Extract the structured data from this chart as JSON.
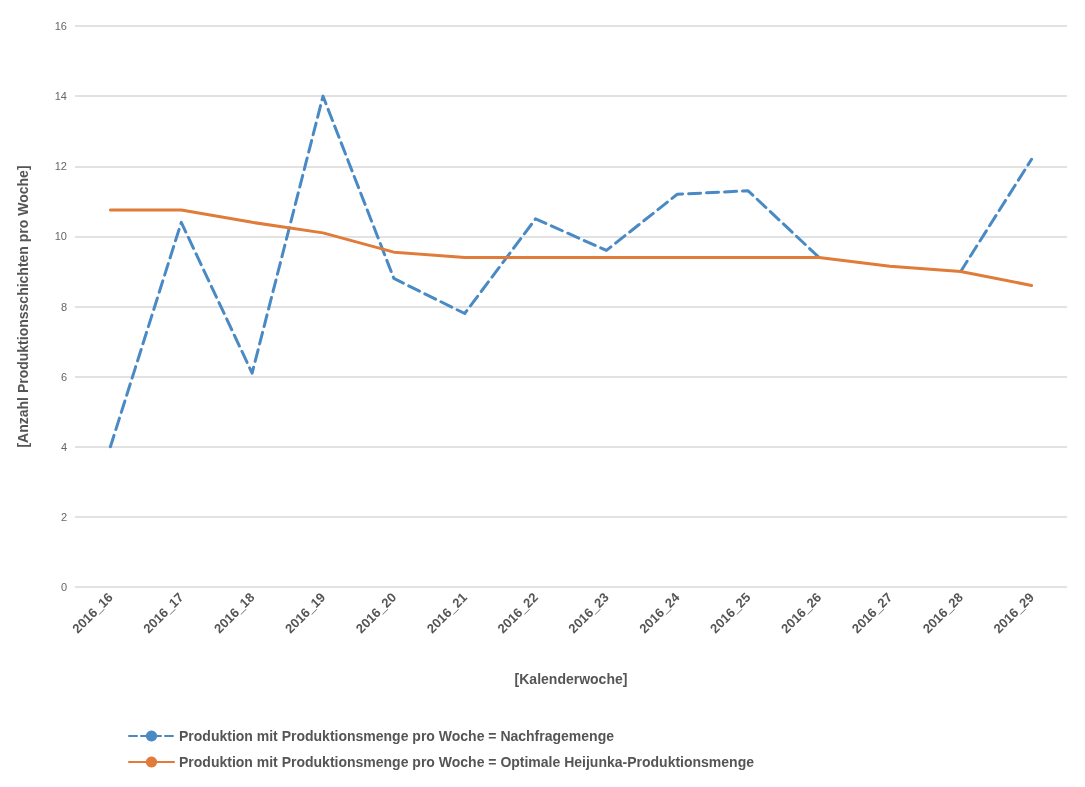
{
  "chart_data": {
    "type": "line",
    "xlabel": "[Kalenderwoche]",
    "ylabel": "[Anzahl Produktionsschichten pro Woche]",
    "categories": [
      "2016_16",
      "2016_17",
      "2016_18",
      "2016_19",
      "2016_20",
      "2016_21",
      "2016_22",
      "2016_23",
      "2016_24",
      "2016_25",
      "2016_26",
      "2016_27",
      "2016_28",
      "2016_29"
    ],
    "series": [
      {
        "name": "Produktion mit Produktionsmenge pro Woche = Nachfragemenge",
        "color": "#4a8ac4",
        "line_style": "dashed",
        "values": [
          4,
          10.4,
          6.1,
          14,
          8.8,
          7.8,
          10.5,
          9.6,
          11.2,
          11.3,
          9.4,
          null,
          9.0,
          12.2
        ]
      },
      {
        "name": "Produktion mit Produktionsmenge pro Woche = Optimale Heijunka-Produktionsmenge",
        "color": "#e07b39",
        "line_style": "solid",
        "values": [
          10.75,
          10.75,
          10.4,
          10.1,
          9.55,
          9.4,
          9.4,
          9.4,
          9.4,
          9.4,
          9.4,
          9.15,
          9.0,
          8.6
        ]
      }
    ],
    "ylim": [
      0,
      16
    ],
    "yticks": [
      0,
      2,
      4,
      6,
      8,
      10,
      12,
      14,
      16
    ],
    "grid": "y",
    "legend": "bottom",
    "marker": "none"
  }
}
